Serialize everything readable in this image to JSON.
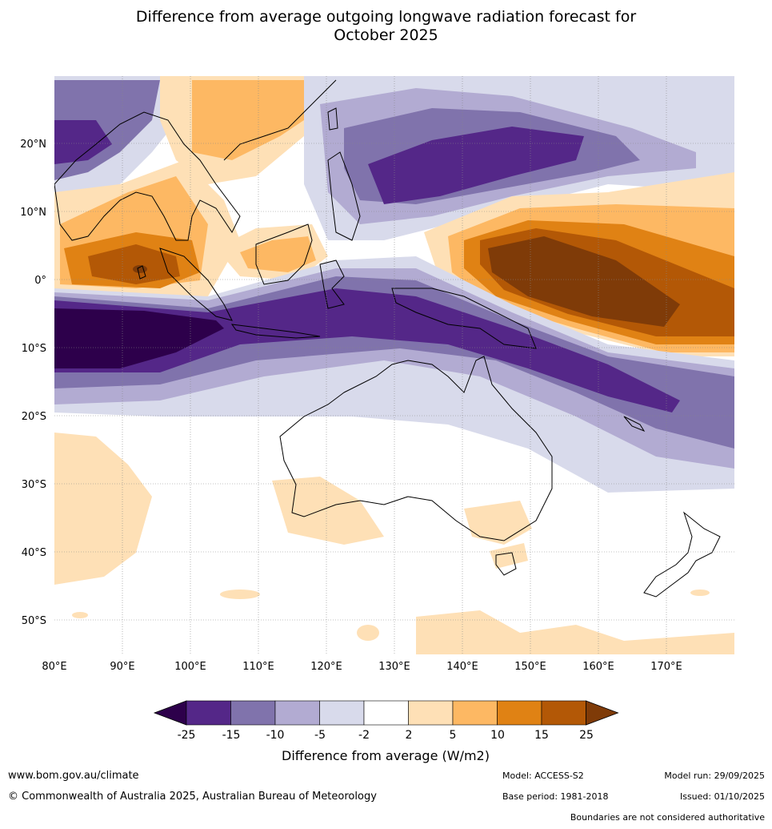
{
  "title_line1": "Difference from average outgoing longwave radiation forecast for",
  "title_line2": "October 2025",
  "lat_labels": [
    "20°N",
    "10°N",
    "0°",
    "10°S",
    "20°S",
    "30°S",
    "40°S",
    "50°S"
  ],
  "lon_labels": [
    "80°E",
    "90°E",
    "100°E",
    "110°E",
    "120°E",
    "130°E",
    "140°E",
    "150°E",
    "160°E",
    "170°E"
  ],
  "legend": {
    "ticks": [
      "-25",
      "-15",
      "-10",
      "-5",
      "-2",
      "2",
      "5",
      "10",
      "15",
      "25"
    ],
    "colors": [
      "#2d004b",
      "#542788",
      "#8073ac",
      "#b2abd2",
      "#d8daeb",
      "#ffffff",
      "#fee0b6",
      "#fdb863",
      "#e08214",
      "#b35806",
      "#7f3b08"
    ],
    "label": "Difference from average (W/m2)"
  },
  "footer": {
    "website": "www.bom.gov.au/climate",
    "copyright": "© Commonwealth of Australia 2025, Australian Bureau of Meteorology",
    "model": "Model: ACCESS-S2",
    "base_period": "Base period: 1981-2018",
    "model_run": "Model run: 29/09/2025",
    "issued": "Issued: 01/10/2025",
    "disclaimer": "Boundaries are not considered authoritative"
  }
}
